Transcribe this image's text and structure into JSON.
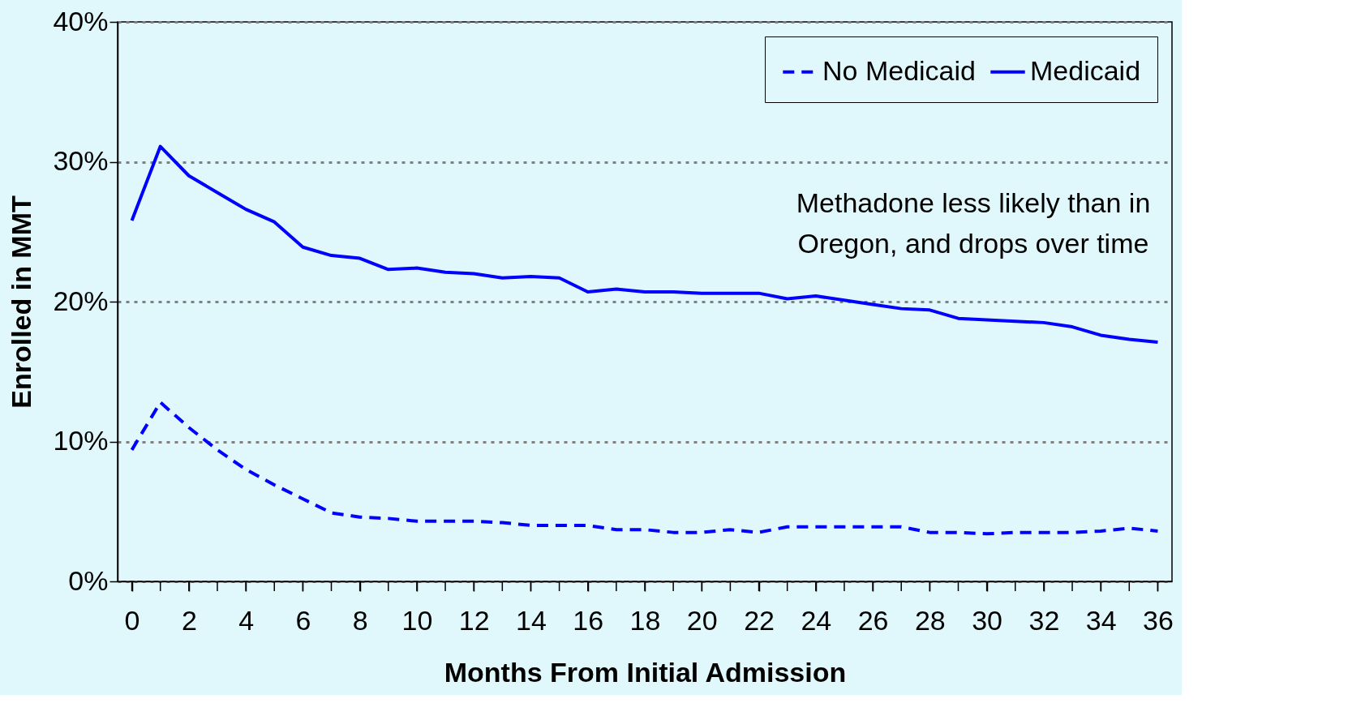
{
  "chart_data": {
    "type": "line",
    "xlabel": "Months From Initial Admission",
    "ylabel": "Enrolled in MMT",
    "x": [
      0,
      1,
      2,
      3,
      4,
      5,
      6,
      7,
      8,
      9,
      10,
      11,
      12,
      13,
      14,
      15,
      16,
      17,
      18,
      19,
      20,
      21,
      22,
      23,
      24,
      25,
      26,
      27,
      28,
      29,
      30,
      31,
      32,
      33,
      34,
      35,
      36
    ],
    "series": [
      {
        "name": "No Medicaid",
        "color": "#0000ff",
        "line_style": "dashed",
        "values": [
          9.4,
          12.8,
          11.0,
          9.4,
          8.0,
          6.9,
          5.9,
          4.9,
          4.6,
          4.5,
          4.3,
          4.3,
          4.3,
          4.2,
          4.0,
          4.0,
          4.0,
          3.7,
          3.7,
          3.5,
          3.5,
          3.7,
          3.5,
          3.9,
          3.9,
          3.9,
          3.9,
          3.9,
          3.5,
          3.5,
          3.4,
          3.5,
          3.5,
          3.5,
          3.6,
          3.8,
          3.6
        ]
      },
      {
        "name": "Medicaid",
        "color": "#0000ff",
        "line_style": "solid",
        "values": [
          25.8,
          31.1,
          29.0,
          27.8,
          26.6,
          25.7,
          23.9,
          23.3,
          23.1,
          22.3,
          22.4,
          22.1,
          22.0,
          21.7,
          21.8,
          21.7,
          20.7,
          20.9,
          20.7,
          20.7,
          20.6,
          20.6,
          20.6,
          20.2,
          20.4,
          20.1,
          19.8,
          19.5,
          19.4,
          18.8,
          18.7,
          18.6,
          18.5,
          18.2,
          17.6,
          17.3,
          17.1
        ]
      }
    ],
    "xlim": [
      -0.5,
      36.5
    ],
    "xticks": [
      0,
      {
        "value": 1,
        "label": null
      },
      2,
      {
        "value": 3,
        "label": null
      },
      4,
      {
        "value": 5,
        "label": null
      },
      6,
      {
        "value": 7,
        "label": null
      },
      8,
      {
        "value": 9,
        "label": null
      },
      10,
      {
        "value": 11,
        "label": null
      },
      12,
      {
        "value": 13,
        "label": null
      },
      14,
      {
        "value": 15,
        "label": null
      },
      16,
      {
        "value": 17,
        "label": null
      },
      18,
      {
        "value": 19,
        "label": null
      },
      20,
      {
        "value": 21,
        "label": null
      },
      22,
      {
        "value": 23,
        "label": null
      },
      24,
      {
        "value": 25,
        "label": null
      },
      26,
      {
        "value": 27,
        "label": null
      },
      28,
      {
        "value": 29,
        "label": null
      },
      30,
      {
        "value": 31,
        "label": null
      },
      32,
      {
        "value": 33,
        "label": null
      },
      34,
      {
        "value": 35,
        "label": null
      },
      36
    ],
    "ylim": [
      0,
      40
    ],
    "yticks": [
      {
        "value": 0,
        "label": "0%"
      },
      {
        "value": 10,
        "label": "10%"
      },
      {
        "value": 20,
        "label": "20%"
      },
      {
        "value": 30,
        "label": "30%"
      },
      {
        "value": 40,
        "label": "40%"
      }
    ],
    "grid": "y",
    "legend": "top right",
    "marker": "none",
    "annotations": [
      "Methadone less likely than in\nOregon, and drops over time"
    ]
  }
}
